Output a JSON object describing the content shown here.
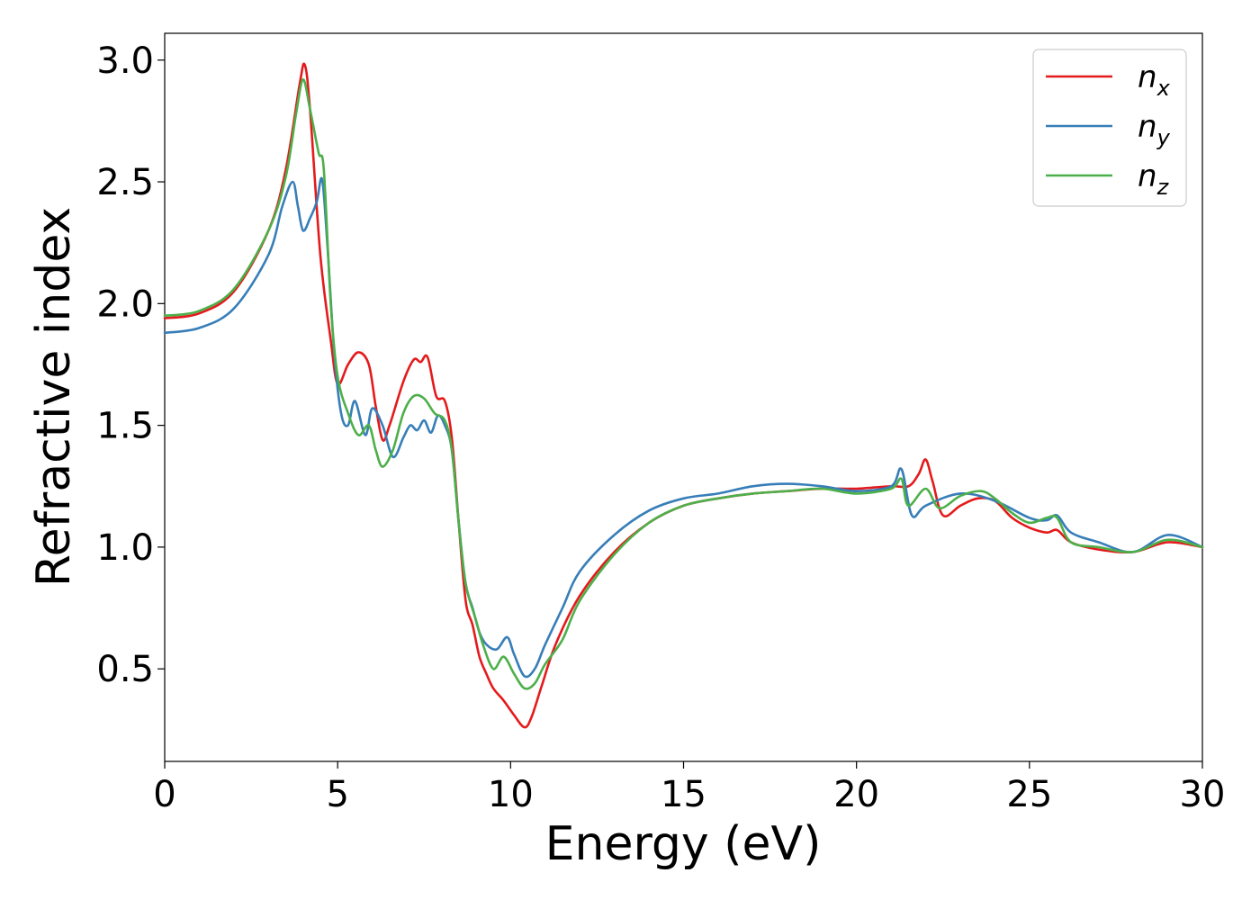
{
  "chart_data": {
    "type": "line",
    "xlabel": "Energy (eV)",
    "ylabel": "Refractive index",
    "xlim": [
      0,
      30
    ],
    "ylim": [
      0.12,
      3.11
    ],
    "xticks": [
      0,
      5,
      10,
      15,
      20,
      25,
      30
    ],
    "xtick_labels": [
      "0",
      "5",
      "10",
      "15",
      "20",
      "25",
      "30"
    ],
    "yticks": [
      0.5,
      1.0,
      1.5,
      2.0,
      2.5,
      3.0
    ],
    "ytick_labels": [
      "0.5",
      "1.0",
      "1.5",
      "2.0",
      "2.5",
      "3.0"
    ],
    "grid": false,
    "legend_position": "top-right",
    "series": [
      {
        "name": "n_x",
        "label_base": "n",
        "label_sub": "x",
        "color": "#e41a1c",
        "points": [
          [
            0,
            1.94
          ],
          [
            1,
            1.96
          ],
          [
            2,
            2.05
          ],
          [
            3,
            2.3
          ],
          [
            3.5,
            2.55
          ],
          [
            3.9,
            2.9
          ],
          [
            4.05,
            2.98
          ],
          [
            4.2,
            2.8
          ],
          [
            4.5,
            2.2
          ],
          [
            4.8,
            1.85
          ],
          [
            5.0,
            1.67
          ],
          [
            5.3,
            1.75
          ],
          [
            5.6,
            1.8
          ],
          [
            5.9,
            1.75
          ],
          [
            6.1,
            1.58
          ],
          [
            6.3,
            1.44
          ],
          [
            6.5,
            1.5
          ],
          [
            6.9,
            1.68
          ],
          [
            7.2,
            1.77
          ],
          [
            7.4,
            1.76
          ],
          [
            7.6,
            1.78
          ],
          [
            7.85,
            1.62
          ],
          [
            8.1,
            1.6
          ],
          [
            8.3,
            1.45
          ],
          [
            8.5,
            1.1
          ],
          [
            8.7,
            0.78
          ],
          [
            8.9,
            0.68
          ],
          [
            9.1,
            0.55
          ],
          [
            9.3,
            0.48
          ],
          [
            9.5,
            0.42
          ],
          [
            9.8,
            0.37
          ],
          [
            10.1,
            0.31
          ],
          [
            10.4,
            0.26
          ],
          [
            10.6,
            0.3
          ],
          [
            10.9,
            0.43
          ],
          [
            11.3,
            0.6
          ],
          [
            12.0,
            0.8
          ],
          [
            13.0,
            0.98
          ],
          [
            14.0,
            1.1
          ],
          [
            15.0,
            1.17
          ],
          [
            16.0,
            1.2
          ],
          [
            17.0,
            1.22
          ],
          [
            18.0,
            1.23
          ],
          [
            19.0,
            1.24
          ],
          [
            20.0,
            1.24
          ],
          [
            21.0,
            1.25
          ],
          [
            21.5,
            1.25
          ],
          [
            21.8,
            1.3
          ],
          [
            22.0,
            1.36
          ],
          [
            22.2,
            1.27
          ],
          [
            22.5,
            1.13
          ],
          [
            23.0,
            1.17
          ],
          [
            23.5,
            1.2
          ],
          [
            24.0,
            1.19
          ],
          [
            24.5,
            1.12
          ],
          [
            25.0,
            1.08
          ],
          [
            25.5,
            1.06
          ],
          [
            25.8,
            1.07
          ],
          [
            26.2,
            1.02
          ],
          [
            27.0,
            0.99
          ],
          [
            28.0,
            0.98
          ],
          [
            29.0,
            1.02
          ],
          [
            30.0,
            1.0
          ]
        ]
      },
      {
        "name": "n_y",
        "label_base": "n",
        "label_sub": "y",
        "color": "#377eb8",
        "points": [
          [
            0,
            1.88
          ],
          [
            1,
            1.9
          ],
          [
            2,
            1.98
          ],
          [
            3,
            2.2
          ],
          [
            3.4,
            2.4
          ],
          [
            3.7,
            2.5
          ],
          [
            3.85,
            2.4
          ],
          [
            4.0,
            2.3
          ],
          [
            4.2,
            2.35
          ],
          [
            4.4,
            2.42
          ],
          [
            4.55,
            2.51
          ],
          [
            4.7,
            2.25
          ],
          [
            4.9,
            1.8
          ],
          [
            5.1,
            1.55
          ],
          [
            5.3,
            1.5
          ],
          [
            5.5,
            1.6
          ],
          [
            5.8,
            1.46
          ],
          [
            6.0,
            1.57
          ],
          [
            6.3,
            1.5
          ],
          [
            6.6,
            1.37
          ],
          [
            6.9,
            1.45
          ],
          [
            7.1,
            1.5
          ],
          [
            7.3,
            1.48
          ],
          [
            7.5,
            1.52
          ],
          [
            7.7,
            1.47
          ],
          [
            7.9,
            1.54
          ],
          [
            8.1,
            1.5
          ],
          [
            8.3,
            1.4
          ],
          [
            8.5,
            1.1
          ],
          [
            8.7,
            0.85
          ],
          [
            8.9,
            0.75
          ],
          [
            9.1,
            0.65
          ],
          [
            9.3,
            0.6
          ],
          [
            9.6,
            0.58
          ],
          [
            9.9,
            0.63
          ],
          [
            10.1,
            0.56
          ],
          [
            10.4,
            0.47
          ],
          [
            10.7,
            0.5
          ],
          [
            11.0,
            0.6
          ],
          [
            11.5,
            0.75
          ],
          [
            12.0,
            0.9
          ],
          [
            13.0,
            1.05
          ],
          [
            14.0,
            1.15
          ],
          [
            15.0,
            1.2
          ],
          [
            16.0,
            1.22
          ],
          [
            17.0,
            1.25
          ],
          [
            18.0,
            1.26
          ],
          [
            19.0,
            1.25
          ],
          [
            20.0,
            1.23
          ],
          [
            21.0,
            1.25
          ],
          [
            21.3,
            1.32
          ],
          [
            21.6,
            1.13
          ],
          [
            22.0,
            1.17
          ],
          [
            23.0,
            1.22
          ],
          [
            24.0,
            1.19
          ],
          [
            25.0,
            1.12
          ],
          [
            25.5,
            1.11
          ],
          [
            25.8,
            1.13
          ],
          [
            26.2,
            1.06
          ],
          [
            27.0,
            1.02
          ],
          [
            28.0,
            0.98
          ],
          [
            29.0,
            1.05
          ],
          [
            30.0,
            1.0
          ]
        ]
      },
      {
        "name": "n_z",
        "label_base": "n",
        "label_sub": "z",
        "color": "#4daf4a",
        "points": [
          [
            0,
            1.95
          ],
          [
            1,
            1.97
          ],
          [
            2,
            2.06
          ],
          [
            3,
            2.3
          ],
          [
            3.5,
            2.52
          ],
          [
            3.8,
            2.78
          ],
          [
            4.0,
            2.92
          ],
          [
            4.2,
            2.8
          ],
          [
            4.45,
            2.62
          ],
          [
            4.6,
            2.55
          ],
          [
            4.8,
            2.0
          ],
          [
            5.0,
            1.7
          ],
          [
            5.3,
            1.55
          ],
          [
            5.6,
            1.46
          ],
          [
            5.9,
            1.5
          ],
          [
            6.1,
            1.4
          ],
          [
            6.3,
            1.33
          ],
          [
            6.6,
            1.4
          ],
          [
            6.9,
            1.55
          ],
          [
            7.2,
            1.62
          ],
          [
            7.5,
            1.61
          ],
          [
            7.8,
            1.55
          ],
          [
            8.1,
            1.52
          ],
          [
            8.3,
            1.4
          ],
          [
            8.5,
            1.1
          ],
          [
            8.7,
            0.85
          ],
          [
            9.0,
            0.7
          ],
          [
            9.2,
            0.6
          ],
          [
            9.5,
            0.5
          ],
          [
            9.8,
            0.55
          ],
          [
            10.1,
            0.48
          ],
          [
            10.4,
            0.42
          ],
          [
            10.7,
            0.44
          ],
          [
            11.0,
            0.52
          ],
          [
            11.5,
            0.62
          ],
          [
            12.0,
            0.78
          ],
          [
            13.0,
            0.97
          ],
          [
            14.0,
            1.1
          ],
          [
            15.0,
            1.17
          ],
          [
            16.0,
            1.2
          ],
          [
            17.0,
            1.22
          ],
          [
            18.0,
            1.23
          ],
          [
            19.0,
            1.24
          ],
          [
            20.0,
            1.22
          ],
          [
            21.0,
            1.24
          ],
          [
            21.3,
            1.28
          ],
          [
            21.5,
            1.17
          ],
          [
            22.0,
            1.24
          ],
          [
            22.4,
            1.16
          ],
          [
            23.0,
            1.21
          ],
          [
            23.6,
            1.23
          ],
          [
            24.0,
            1.2
          ],
          [
            24.5,
            1.14
          ],
          [
            25.0,
            1.1
          ],
          [
            25.5,
            1.12
          ],
          [
            25.8,
            1.12
          ],
          [
            26.2,
            1.02
          ],
          [
            27.0,
            1.0
          ],
          [
            28.0,
            0.98
          ],
          [
            29.0,
            1.03
          ],
          [
            30.0,
            1.0
          ]
        ]
      }
    ]
  }
}
